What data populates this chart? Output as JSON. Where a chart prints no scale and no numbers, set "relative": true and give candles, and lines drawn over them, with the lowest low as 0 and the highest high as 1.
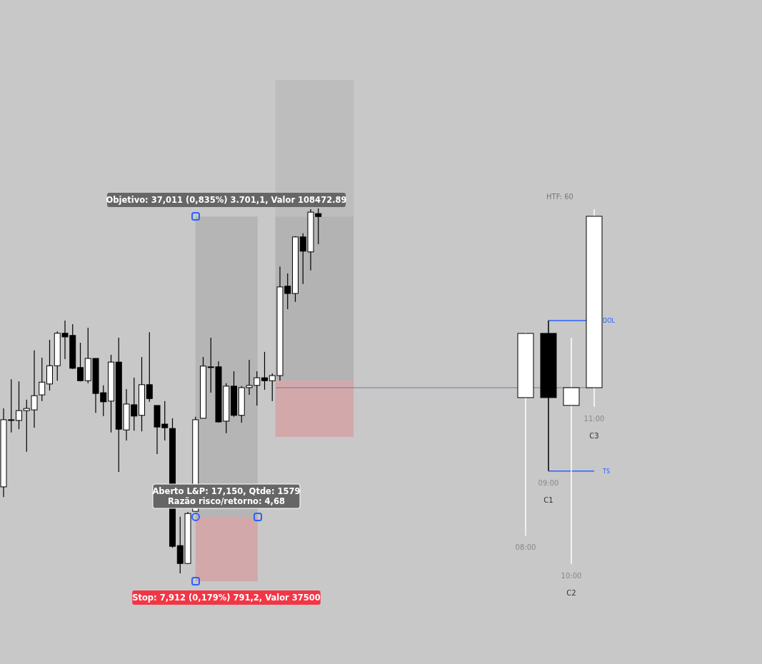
{
  "chart_data": [
    {
      "type": "candlestick",
      "relative": true,
      "categories": [
        null,
        null,
        null,
        null,
        null,
        null,
        null,
        null,
        null,
        null,
        null,
        null,
        null,
        null,
        null,
        null,
        null,
        null,
        null,
        null,
        null,
        null,
        null,
        null,
        null,
        null,
        null,
        null,
        null,
        null,
        null,
        null,
        null,
        null,
        null,
        null,
        null,
        null,
        null,
        null,
        null,
        null
      ],
      "ohlc": [
        [
          0.237,
          0.452,
          0.209,
          0.421
        ],
        [
          0.419,
          0.532,
          0.386,
          0.421
        ],
        [
          0.419,
          0.526,
          0.395,
          0.446
        ],
        [
          0.446,
          0.476,
          0.333,
          0.452
        ],
        [
          0.448,
          0.611,
          0.399,
          0.487
        ],
        [
          0.489,
          0.591,
          0.472,
          0.524
        ],
        [
          0.519,
          0.64,
          0.501,
          0.569
        ],
        [
          0.569,
          0.663,
          0.528,
          0.658
        ],
        [
          0.658,
          0.693,
          0.587,
          0.648
        ],
        [
          0.652,
          0.683,
          0.56,
          0.562
        ],
        [
          0.564,
          0.632,
          0.526,
          0.528
        ],
        [
          0.528,
          0.673,
          0.521,
          0.589
        ],
        [
          0.589,
          0.589,
          0.44,
          0.493
        ],
        [
          0.495,
          0.515,
          0.431,
          0.47
        ],
        [
          0.472,
          0.599,
          0.386,
          0.579
        ],
        [
          0.579,
          0.646,
          0.278,
          0.395
        ],
        [
          0.393,
          0.505,
          0.364,
          0.464
        ],
        [
          0.462,
          0.536,
          0.391,
          0.431
        ],
        [
          0.433,
          0.593,
          0.389,
          0.517
        ],
        [
          0.517,
          0.661,
          0.47,
          0.479
        ],
        [
          0.46,
          0.46,
          0.327,
          0.401
        ],
        [
          0.409,
          0.472,
          0.364,
          0.399
        ],
        [
          0.397,
          0.425,
          0.07,
          0.074
        ],
        [
          0.076,
          0.155,
          0,
          0.027
        ],
        [
          0.027,
          0.168,
          0.027,
          0.164
        ],
        [
          0.17,
          0.429,
          0.17,
          0.421
        ],
        [
          0.425,
          0.593,
          0.425,
          0.568
        ],
        [
          0.566,
          0.646,
          0.495,
          0.566
        ],
        [
          0.566,
          0.581,
          0.413,
          0.415
        ],
        [
          0.417,
          0.521,
          0.384,
          0.513
        ],
        [
          0.513,
          0.554,
          0.429,
          0.433
        ],
        [
          0.433,
          0.513,
          0.413,
          0.509
        ],
        [
          0.509,
          0.585,
          0.489,
          0.515
        ],
        [
          0.515,
          0.554,
          0.46,
          0.536
        ],
        [
          0.536,
          0.607,
          0.503,
          0.528
        ],
        [
          0.528,
          0.548,
          0.472,
          0.542
        ],
        [
          0.542,
          0.841,
          0.528,
          0.785
        ],
        [
          0.787,
          0.822,
          0.724,
          0.767
        ],
        [
          0.767,
          0.924,
          0.744,
          0.922
        ],
        [
          0.922,
          0.932,
          0.793,
          0.883
        ],
        [
          0.881,
          0.998,
          0.83,
          0.99
        ],
        [
          0.986,
          1,
          0.902,
          0.978
        ]
      ],
      "annotations": [
        "Objetivo: 37,011 (0,835%) 3.701,1, Valor 108472.89",
        "Aberto L&P: 17,150, Qtde: 1579\nRazão risco/retorno: 4,68",
        "Stop: 7,912 (0,179%) 791,2, Valor 37500"
      ],
      "bands": [
        {
          "axis": "y",
          "from": 0.155,
          "to": 0.978,
          "color": "#b5b5b5"
        },
        {
          "axis": "y",
          "from": -0.022,
          "to": 0.155,
          "color": "#d2a8ab"
        },
        {
          "axis": "y",
          "from": 0.528,
          "to": 0.978,
          "color": "#b3b3b3"
        },
        {
          "axis": "y",
          "from": 0.978,
          "to": 1.352,
          "color": "#bdbdbd"
        },
        {
          "axis": "y",
          "from": 0.374,
          "to": 0.528,
          "color": "#d2a8ab"
        }
      ]
    },
    {
      "type": "candlestick",
      "relative": true,
      "title": "HTF: 60",
      "categories": [
        "08:00",
        "09:00",
        "10:00",
        "11:00"
      ],
      "ohlc": [
        [
          0.469,
          0.654,
          0.08,
          0.65
        ],
        [
          0.65,
          0.686,
          0.262,
          0.469
        ],
        [
          0.447,
          0.638,
          0,
          0.497
        ],
        [
          0.497,
          1,
          0.443,
          0.98
        ]
      ],
      "annotations": [
        "C1",
        "C2",
        "C3"
      ],
      "ref_lines": [
        {
          "axis": "y",
          "value": 0.686,
          "label": "DOL",
          "color": "#2962ff"
        },
        {
          "axis": "y",
          "value": 0.262,
          "label": "TS",
          "color": "#2962ff"
        },
        {
          "axis": "y",
          "value": 0.497,
          "color": "#5b6b9a"
        }
      ]
    }
  ]
}
